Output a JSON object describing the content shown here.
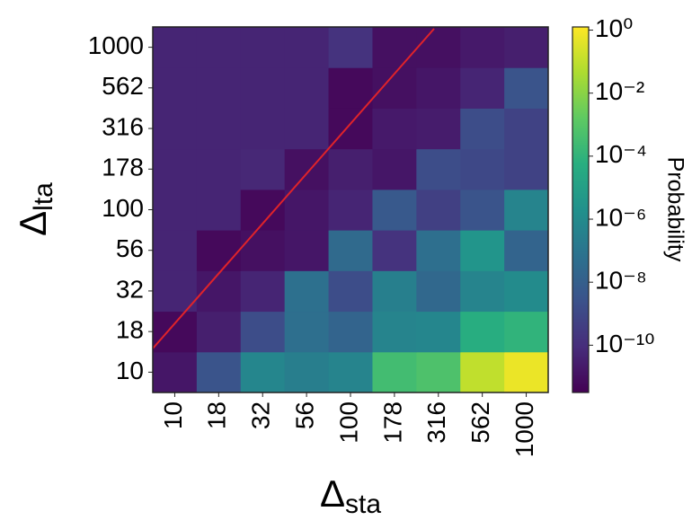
{
  "chart_data": {
    "type": "heatmap",
    "x_label": {
      "symbol": "Δ",
      "subscript": "sta"
    },
    "y_label": {
      "symbol": "Δ",
      "subscript": "lta"
    },
    "colorbar_label": "Probability",
    "x_categories": [
      "10",
      "18",
      "32",
      "56",
      "100",
      "178",
      "316",
      "562",
      "1000"
    ],
    "y_categories": [
      "10",
      "18",
      "32",
      "56",
      "100",
      "178",
      "316",
      "562",
      "1000"
    ],
    "values": [
      [
        1.6e-11,
        3e-09,
        6e-07,
        2.5e-07,
        5e-07,
        0.0003,
        0.0006,
        0.1,
        0.6
      ],
      [
        6e-12,
        3e-11,
        1.6e-09,
        5e-08,
        1.6e-08,
        5e-07,
        6e-07,
        5e-05,
        0.0001
      ],
      [
        5e-11,
        1.6e-11,
        5e-11,
        6e-08,
        1.6e-09,
        3e-07,
        2.5e-08,
        5e-07,
        1e-06
      ],
      [
        5e-11,
        6e-12,
        1e-11,
        1.6e-11,
        3e-08,
        1.6e-10,
        5e-08,
        3e-06,
        1.6e-08
      ],
      [
        5e-11,
        5e-11,
        6e-12,
        1.6e-11,
        5e-11,
        5e-09,
        5e-10,
        3e-09,
        5e-07
      ],
      [
        5e-11,
        5e-11,
        6e-11,
        1e-11,
        3e-11,
        1.6e-11,
        1.6e-09,
        1e-09,
        6e-10
      ],
      [
        5e-11,
        5e-11,
        5e-11,
        5e-11,
        6e-12,
        2e-11,
        2.5e-11,
        1.6e-09,
        6e-10
      ],
      [
        5e-11,
        5e-11,
        5e-11,
        5e-11,
        6e-12,
        1e-11,
        1.6e-11,
        5e-11,
        3e-09
      ],
      [
        5e-11,
        5e-11,
        5e-11,
        5e-11,
        1.6e-10,
        1e-11,
        1e-11,
        2e-11,
        3e-11
      ]
    ],
    "zlim": [
      3.16e-12,
      1.26
    ],
    "log_scale": true,
    "colormap": "viridis",
    "zticks": [
      {
        "value": 1,
        "label": "10⁰"
      },
      {
        "value": 0.01,
        "label": "10⁻²"
      },
      {
        "value": 0.0001,
        "label": "10⁻⁴"
      },
      {
        "value": 1e-06,
        "label": "10⁻⁶"
      },
      {
        "value": 1e-08,
        "label": "10⁻⁸"
      },
      {
        "value": 1e-10,
        "label": "10⁻¹⁰"
      }
    ]
  }
}
